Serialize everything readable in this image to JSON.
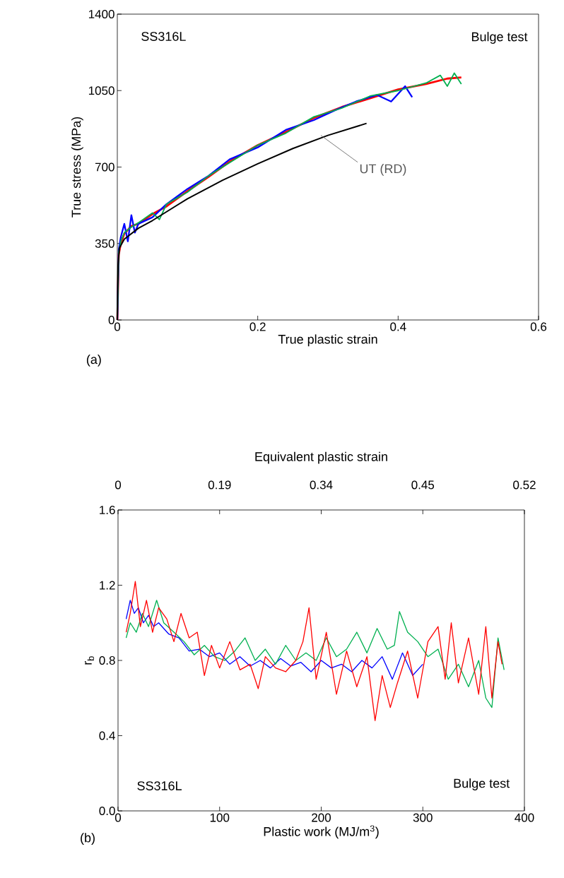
{
  "chart_data": [
    {
      "type": "line",
      "xlabel": "True plastic strain",
      "ylabel": "True stress (MPa)",
      "xlim": [
        0,
        0.6
      ],
      "ylim": [
        0,
        1400
      ],
      "xticks": [
        0,
        0.2,
        0.4,
        0.6
      ],
      "yticks": [
        0,
        350,
        700,
        1050,
        1400
      ],
      "annotations": [
        "SS316L",
        "Bulge test",
        {
          "text": "UT (RD)",
          "x": 0.29,
          "y": 845
        },
        "(a)"
      ],
      "series": [
        {
          "color": "#ff0000",
          "x": [
            0,
            0.002,
            0.005,
            0.01,
            0.02,
            0.03,
            0.05,
            0.07,
            0.1,
            0.13,
            0.16,
            0.2,
            0.24,
            0.28,
            0.32,
            0.36,
            0.4,
            0.44,
            0.47,
            0.49
          ],
          "values": [
            0,
            300,
            350,
            395,
            430,
            440,
            485,
            520,
            590,
            655,
            725,
            800,
            860,
            925,
            975,
            1015,
            1055,
            1080,
            1105,
            1110
          ]
        },
        {
          "color": "#0000ff",
          "x": [
            0,
            0.002,
            0.005,
            0.01,
            0.015,
            0.02,
            0.025,
            0.03,
            0.05,
            0.07,
            0.1,
            0.13,
            0.16,
            0.2,
            0.24,
            0.28,
            0.31,
            0.34,
            0.37,
            0.39,
            0.41,
            0.42
          ],
          "values": [
            0,
            320,
            380,
            440,
            360,
            480,
            400,
            440,
            470,
            530,
            600,
            660,
            735,
            790,
            870,
            915,
            960,
            1000,
            1030,
            1000,
            1070,
            1020
          ]
        },
        {
          "color": "#00b050",
          "x": [
            0,
            0.002,
            0.005,
            0.01,
            0.02,
            0.03,
            0.05,
            0.06,
            0.07,
            0.1,
            0.13,
            0.16,
            0.2,
            0.24,
            0.28,
            0.32,
            0.36,
            0.4,
            0.44,
            0.46,
            0.47,
            0.48,
            0.49
          ],
          "values": [
            0,
            310,
            360,
            400,
            425,
            445,
            490,
            460,
            530,
            585,
            660,
            720,
            800,
            855,
            930,
            970,
            1025,
            1050,
            1085,
            1120,
            1070,
            1130,
            1080
          ]
        },
        {
          "color": "#000000",
          "x": [
            0,
            0.001,
            0.003,
            0.01,
            0.03,
            0.05,
            0.1,
            0.15,
            0.2,
            0.25,
            0.3,
            0.355
          ],
          "values": [
            0,
            250,
            330,
            370,
            420,
            455,
            555,
            640,
            715,
            785,
            845,
            900
          ]
        }
      ]
    },
    {
      "type": "line",
      "xlabel": "Plastic work (MJ/m$^{3}$)",
      "ylabel": "r$_{b}$",
      "x2label": "Equivalent plastic strain",
      "xlim": [
        0,
        400
      ],
      "ylim": [
        0,
        1.6
      ],
      "xticks": [
        0,
        100,
        200,
        300,
        400
      ],
      "yticks": [
        {
          "value": 0,
          "label": "0.0"
        },
        {
          "value": 0.4,
          "label": "0.4"
        },
        {
          "value": 0.8,
          "label": "0.8"
        },
        {
          "value": 1.2,
          "label": "1.2"
        },
        {
          "value": 1.6,
          "label": "1.6"
        }
      ],
      "annotations": [
        "SS316L",
        "Bulge test",
        "(b)",
        "0",
        "0.19",
        "0.34",
        "0.45",
        "0.52"
      ],
      "series": [
        {
          "color": "#0000ff",
          "x": [
            8,
            12,
            16,
            20,
            25,
            30,
            35,
            40,
            50,
            60,
            70,
            80,
            90,
            100,
            110,
            120,
            130,
            140,
            150,
            160,
            170,
            180,
            190,
            200,
            210,
            220,
            230,
            240,
            250,
            260,
            270,
            280,
            290,
            300
          ],
          "values": [
            1.02,
            1.12,
            1.05,
            1.08,
            1.0,
            1.04,
            0.98,
            1.0,
            0.94,
            0.92,
            0.85,
            0.86,
            0.82,
            0.84,
            0.78,
            0.82,
            0.77,
            0.8,
            0.76,
            0.81,
            0.77,
            0.79,
            0.74,
            0.8,
            0.76,
            0.78,
            0.74,
            0.8,
            0.76,
            0.82,
            0.7,
            0.84,
            0.72,
            0.78
          ]
        },
        {
          "color": "#00b050",
          "x": [
            8,
            12,
            18,
            24,
            30,
            38,
            45,
            55,
            65,
            75,
            85,
            95,
            105,
            115,
            125,
            135,
            145,
            155,
            165,
            175,
            185,
            195,
            205,
            215,
            225,
            235,
            245,
            255,
            265,
            272,
            277,
            285,
            295,
            305,
            315,
            325,
            335,
            345,
            355,
            362,
            368,
            374,
            380
          ],
          "values": [
            0.92,
            1.0,
            0.95,
            1.05,
            0.98,
            1.12,
            1.0,
            0.95,
            0.9,
            0.83,
            0.88,
            0.82,
            0.8,
            0.85,
            0.92,
            0.8,
            0.86,
            0.78,
            0.88,
            0.8,
            0.84,
            0.8,
            0.92,
            0.82,
            0.86,
            0.95,
            0.84,
            0.97,
            0.86,
            0.88,
            1.06,
            0.95,
            0.9,
            0.82,
            0.86,
            0.7,
            0.78,
            0.66,
            0.8,
            0.6,
            0.55,
            0.92,
            0.75
          ]
        },
        {
          "color": "#ff0000",
          "x": [
            8,
            12,
            17,
            22,
            28,
            34,
            40,
            48,
            55,
            62,
            70,
            78,
            85,
            92,
            100,
            110,
            120,
            130,
            138,
            145,
            155,
            165,
            175,
            182,
            188,
            195,
            205,
            215,
            225,
            235,
            245,
            253,
            260,
            268,
            275,
            285,
            295,
            305,
            315,
            322,
            328,
            335,
            345,
            355,
            362,
            368,
            374,
            378
          ],
          "values": [
            0.95,
            1.05,
            1.22,
            0.98,
            1.12,
            0.95,
            1.08,
            1.02,
            0.9,
            1.05,
            0.92,
            0.95,
            0.72,
            0.88,
            0.76,
            0.9,
            0.75,
            0.78,
            0.65,
            0.82,
            0.76,
            0.74,
            0.8,
            0.9,
            1.08,
            0.7,
            0.95,
            0.62,
            0.85,
            0.66,
            0.82,
            0.48,
            0.72,
            0.55,
            0.68,
            0.85,
            0.6,
            0.9,
            0.98,
            0.7,
            1.0,
            0.68,
            0.92,
            0.62,
            0.98,
            0.6,
            0.9,
            0.78
          ]
        }
      ]
    }
  ]
}
